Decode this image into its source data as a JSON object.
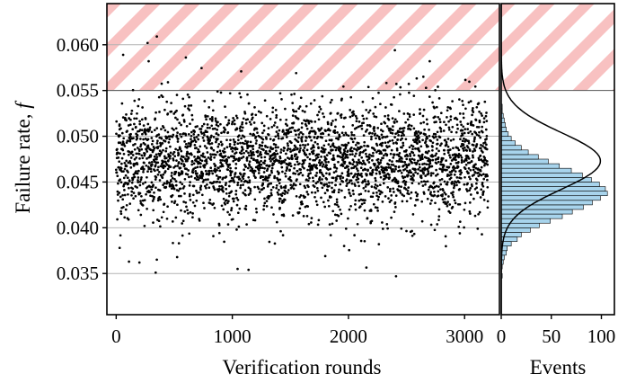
{
  "chart_data": [
    {
      "type": "scatter",
      "title": "",
      "xlabel": "Verification rounds",
      "ylabel": "Failure rate, f",
      "ylabel_main": "Failure rate, ",
      "ylabel_symbol": "f",
      "xlim": [
        -80,
        3300
      ],
      "ylim": [
        0.0305,
        0.0645
      ],
      "xticks": [
        0,
        1000,
        2000,
        3000
      ],
      "xtick_labels": [
        "0",
        "1000",
        "2000",
        "3000"
      ],
      "yticks": [
        0.035,
        0.04,
        0.045,
        0.05,
        0.055,
        0.06
      ],
      "ytick_labels": [
        "0.035",
        "0.040",
        "0.045",
        "0.050",
        "0.055",
        "0.060"
      ],
      "grid": "horizontal",
      "threshold": 0.055,
      "forbidden_region": [
        0.055,
        0.0645
      ],
      "forbidden_region_color": "#f4a0a0",
      "point_color": "#000000",
      "n_points": 3200,
      "mean": 0.0473,
      "std": 0.0031,
      "x_range": [
        0,
        3200
      ],
      "sample_points": [
        {
          "x": 270,
          "y": 0.0602
        },
        {
          "x": 350,
          "y": 0.0609
        },
        {
          "x": 600,
          "y": 0.0586
        },
        {
          "x": 280,
          "y": 0.0582
        },
        {
          "x": 1550,
          "y": 0.0569
        },
        {
          "x": 2400,
          "y": 0.0594
        },
        {
          "x": 2700,
          "y": 0.0582
        },
        {
          "x": 60,
          "y": 0.0589
        },
        {
          "x": 340,
          "y": 0.0351
        },
        {
          "x": 1140,
          "y": 0.0354
        },
        {
          "x": 2410,
          "y": 0.0347
        },
        {
          "x": 110,
          "y": 0.0363
        },
        {
          "x": 200,
          "y": 0.0362
        },
        {
          "x": 30,
          "y": 0.0378
        },
        {
          "x": 540,
          "y": 0.0383
        },
        {
          "x": 1800,
          "y": 0.0369
        }
      ]
    },
    {
      "type": "bar",
      "orientation": "horizontal",
      "title": "",
      "xlabel": "Events",
      "ylabel": "",
      "xlim": [
        0,
        113
      ],
      "xticks": [
        0,
        50,
        100
      ],
      "xtick_labels": [
        "0",
        "50",
        "100"
      ],
      "bar_color": "#a8d4ec",
      "fit_curve": "gaussian",
      "fit_mean": 0.0473,
      "fit_std": 0.0031,
      "fit_peak": 99,
      "bin_edges_start": 0.0345,
      "bin_width": 0.0005,
      "counts": [
        1,
        0,
        1,
        2,
        3,
        5,
        6,
        10,
        16,
        20,
        29,
        38,
        49,
        61,
        71,
        82,
        91,
        99,
        106,
        104,
        98,
        90,
        81,
        70,
        58,
        47,
        37,
        27,
        20,
        14,
        10,
        7,
        5,
        4,
        3,
        2,
        1,
        1,
        0,
        0,
        0,
        0
      ]
    }
  ]
}
